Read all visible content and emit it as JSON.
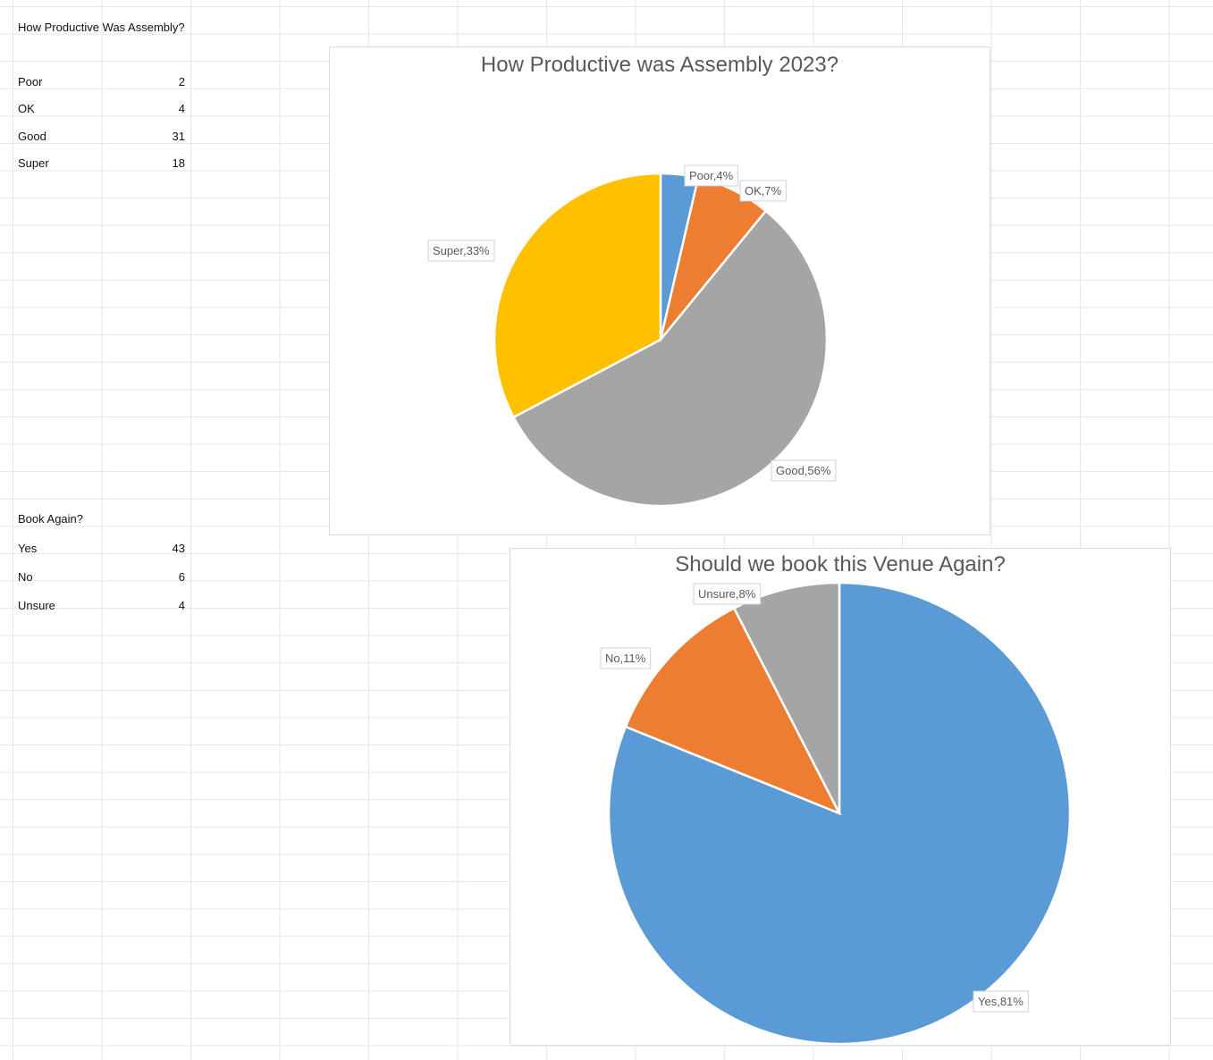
{
  "sheet": {
    "table1": {
      "heading": "How Productive Was Assembly?",
      "rows": [
        {
          "label": "Poor",
          "value": "2"
        },
        {
          "label": "OK",
          "value": "4"
        },
        {
          "label": "Good",
          "value": "31"
        },
        {
          "label": "Super",
          "value": "18"
        }
      ]
    },
    "table2": {
      "heading": "Book Again?",
      "rows": [
        {
          "label": "Yes",
          "value": "43"
        },
        {
          "label": "No",
          "value": "6"
        },
        {
          "label": "Unsure",
          "value": "4"
        }
      ]
    }
  },
  "chart_data": [
    {
      "type": "pie",
      "title": "How Productive was Assembly 2023?",
      "categories": [
        "Poor",
        "OK",
        "Good",
        "Super"
      ],
      "values": [
        2,
        4,
        31,
        18
      ],
      "labels": [
        "Poor,4%",
        "OK,7%",
        "Good,56%",
        "Super,33%"
      ],
      "colors": [
        "#5b9bd5",
        "#ed7d31",
        "#a5a5a5",
        "#ffc000"
      ]
    },
    {
      "type": "pie",
      "title": "Should we book this Venue Again?",
      "categories": [
        "Yes",
        "No",
        "Unsure"
      ],
      "values": [
        43,
        6,
        4
      ],
      "labels": [
        "Yes,81%",
        "No,11%",
        "Unsure,8%"
      ],
      "colors": [
        "#5b9bd5",
        "#ed7d31",
        "#a5a5a5"
      ]
    }
  ]
}
